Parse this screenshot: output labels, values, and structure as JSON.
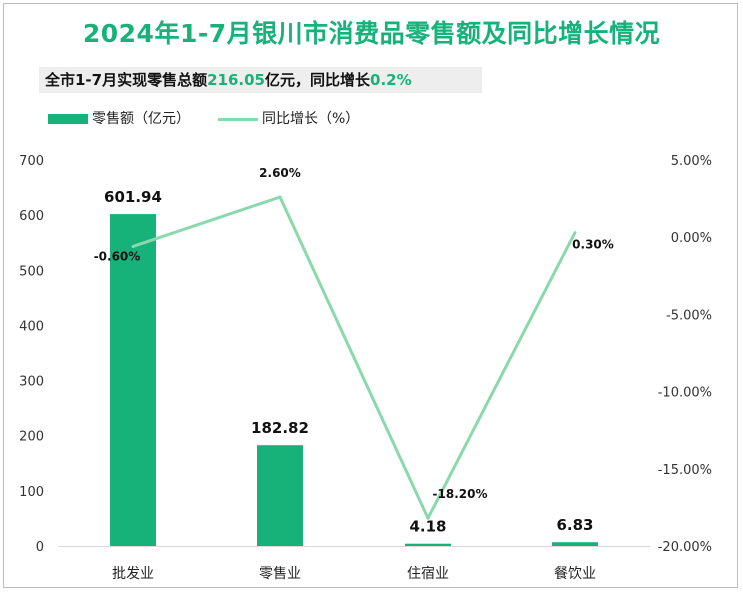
{
  "title": "2024年1-7月银川市消费品零售额及同比增长情况",
  "subtitle": {
    "prefix": "全市1-7月实现零售总额",
    "amount": "216.05",
    "mid": "亿元，同比增长",
    "growth": "0.2%"
  },
  "colors": {
    "bar": "#16b27a",
    "line": "#8ad9ac",
    "title": "#16b27a"
  },
  "chart_data": {
    "type": "bar",
    "categories": [
      "批发业",
      "零售业",
      "住宿业",
      "餐饮业"
    ],
    "series": [
      {
        "name": "零售额（亿元）",
        "kind": "bar",
        "axis": "left",
        "values": [
          601.94,
          182.82,
          4.18,
          6.83
        ],
        "labels": [
          "601.94",
          "182.82",
          "4.18",
          "6.83"
        ]
      },
      {
        "name": "同比增长（%）",
        "kind": "line",
        "axis": "right",
        "values": [
          -0.6,
          2.6,
          -18.2,
          0.3
        ],
        "labels": [
          "-0.60%",
          "2.60%",
          "-18.20%",
          "0.30%"
        ]
      }
    ],
    "y_left": {
      "min": 0,
      "max": 700,
      "ticks": [
        "0",
        "100",
        "200",
        "300",
        "400",
        "500",
        "600",
        "700"
      ]
    },
    "y_right": {
      "min": -20,
      "max": 5,
      "ticks": [
        "-20.00%",
        "-15.00%",
        "-10.00%",
        "-5.00%",
        "0.00%",
        "5.00%"
      ]
    },
    "legend_position": "top-left",
    "grid": false
  }
}
